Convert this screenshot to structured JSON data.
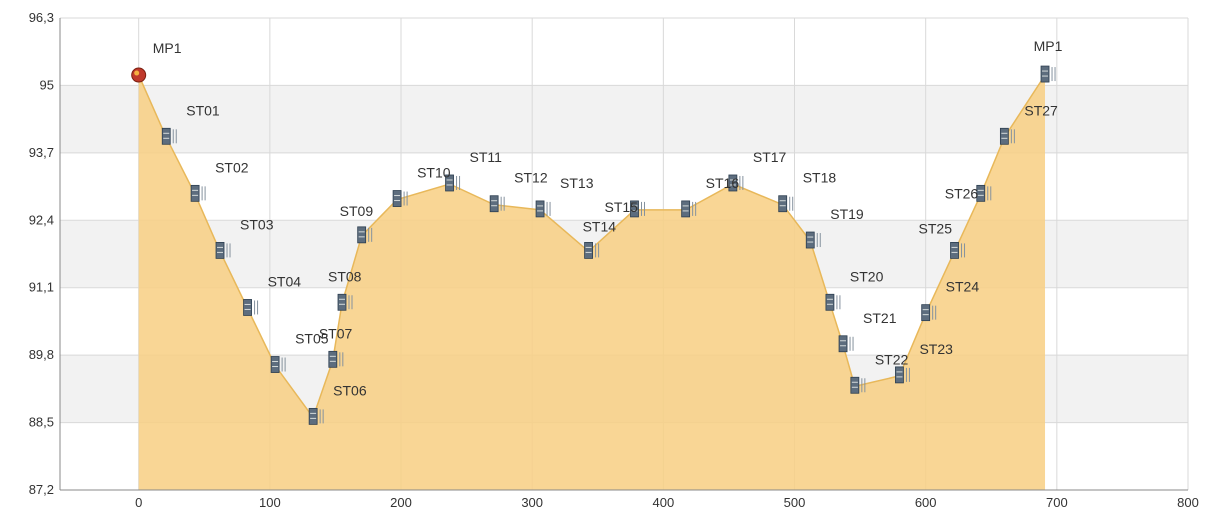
{
  "chart_data": {
    "type": "area",
    "title": "",
    "xlabel": "",
    "ylabel": "",
    "xlim": [
      -60,
      800
    ],
    "ylim": [
      87.2,
      96.3
    ],
    "x_ticks": [
      0,
      100,
      200,
      300,
      400,
      500,
      600,
      700,
      800
    ],
    "x_tick_labels": [
      "0",
      "100",
      "200",
      "300",
      "400",
      "500",
      "600",
      "700",
      "800"
    ],
    "y_ticks": [
      87.2,
      88.5,
      89.8,
      91.1,
      92.4,
      93.7,
      95,
      96.3
    ],
    "y_tick_labels": [
      "87,2",
      "88,5",
      "89,8",
      "91,1",
      "92,4",
      "93,7",
      "95",
      "96,3"
    ],
    "grid": true,
    "legend": "none",
    "colors": {
      "fill": "#f8cf82",
      "line": "#e8b85a",
      "band": "#f2f2f2",
      "grid": "#d9d9d9",
      "text": "#333333",
      "start_marker": "#c0392b"
    },
    "series": [
      {
        "points": [
          {
            "label": "MP1",
            "x": 0,
            "y": 95.2
          },
          {
            "label": "ST01",
            "x": 21,
            "y": 94.0
          },
          {
            "label": "ST02",
            "x": 43,
            "y": 92.9
          },
          {
            "label": "ST03",
            "x": 62,
            "y": 91.8
          },
          {
            "label": "ST04",
            "x": 83,
            "y": 90.7
          },
          {
            "label": "ST05",
            "x": 104,
            "y": 89.6
          },
          {
            "label": "ST06",
            "x": 133,
            "y": 88.6
          },
          {
            "label": "ST07",
            "x": 148,
            "y": 89.7
          },
          {
            "label": "ST08",
            "x": 155,
            "y": 90.8
          },
          {
            "label": "ST09",
            "x": 170,
            "y": 92.1
          },
          {
            "label": "ST10",
            "x": 197,
            "y": 92.8
          },
          {
            "label": "ST11",
            "x": 237,
            "y": 93.1
          },
          {
            "label": "ST12",
            "x": 271,
            "y": 92.7
          },
          {
            "label": "ST13",
            "x": 306,
            "y": 92.6
          },
          {
            "label": "ST14",
            "x": 343,
            "y": 91.8
          },
          {
            "label": "ST15",
            "x": 378,
            "y": 92.6
          },
          {
            "label": "ST16",
            "x": 417,
            "y": 92.6
          },
          {
            "label": "ST17",
            "x": 453,
            "y": 93.1
          },
          {
            "label": "ST18",
            "x": 491,
            "y": 92.7
          },
          {
            "label": "ST19",
            "x": 512,
            "y": 92.0
          },
          {
            "label": "ST20",
            "x": 527,
            "y": 90.8
          },
          {
            "label": "ST21",
            "x": 537,
            "y": 90.0
          },
          {
            "label": "ST22",
            "x": 546,
            "y": 89.2
          },
          {
            "label": "ST23",
            "x": 580,
            "y": 89.4
          },
          {
            "label": "ST24",
            "x": 600,
            "y": 90.6
          },
          {
            "label": "ST25",
            "x": 622,
            "y": 91.8
          },
          {
            "label": "ST26",
            "x": 642,
            "y": 92.9
          },
          {
            "label": "ST27",
            "x": 660,
            "y": 94.0
          },
          {
            "label": "MP1",
            "x": 691,
            "y": 95.2
          }
        ]
      }
    ]
  }
}
